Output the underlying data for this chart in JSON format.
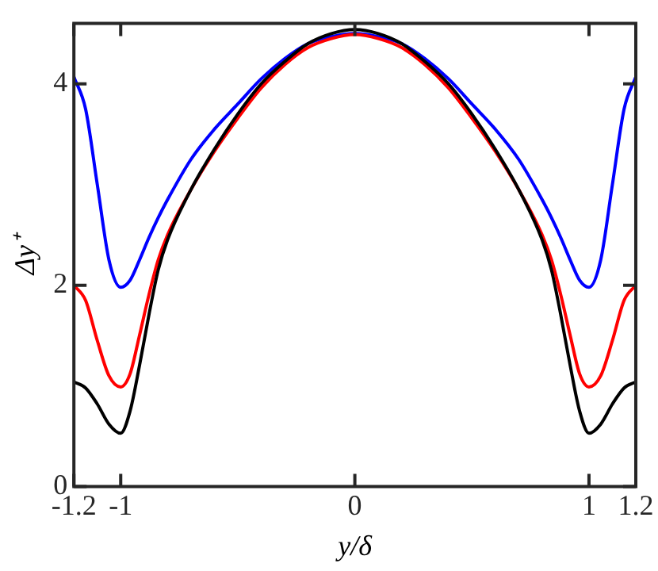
{
  "chart_data": {
    "type": "line",
    "xlabel": "y/δ",
    "ylabel": "Δy⁺",
    "xlim": [
      -1.2,
      1.2
    ],
    "ylim": [
      0,
      4.6
    ],
    "xticks": [
      -1.2,
      -1,
      0,
      1,
      1.2
    ],
    "yticks": [
      0,
      2,
      4
    ],
    "grid": false,
    "legend": false,
    "marker": "none",
    "line_style": "solid",
    "x": [
      -1.2,
      -1.15,
      -1.1,
      -1.05,
      -1,
      -0.96,
      -0.92,
      -0.88,
      -0.84,
      -0.8,
      -0.7,
      -0.6,
      -0.5,
      -0.4,
      -0.3,
      -0.2,
      -0.1,
      0,
      0.1,
      0.2,
      0.3,
      0.4,
      0.5,
      0.6,
      0.7,
      0.8,
      0.84,
      0.88,
      0.92,
      0.96,
      1,
      1.05,
      1.1,
      1.15,
      1.2
    ],
    "series": [
      {
        "color": "#000000",
        "values": [
          1.04,
          0.98,
          0.82,
          0.62,
          0.53,
          0.75,
          1.2,
          1.7,
          2.15,
          2.45,
          2.95,
          3.35,
          3.7,
          4.0,
          4.22,
          4.4,
          4.5,
          4.54,
          4.5,
          4.4,
          4.22,
          4.0,
          3.7,
          3.35,
          2.95,
          2.45,
          2.15,
          1.7,
          1.2,
          0.75,
          0.53,
          0.62,
          0.82,
          0.98,
          1.04
        ]
      },
      {
        "color": "#ff0000",
        "values": [
          2.0,
          1.85,
          1.45,
          1.1,
          0.99,
          1.12,
          1.5,
          1.9,
          2.25,
          2.5,
          2.95,
          3.33,
          3.66,
          3.96,
          4.19,
          4.36,
          4.45,
          4.49,
          4.45,
          4.36,
          4.19,
          3.96,
          3.66,
          3.33,
          2.95,
          2.5,
          2.25,
          1.9,
          1.5,
          1.12,
          0.99,
          1.1,
          1.45,
          1.85,
          2.0
        ]
      },
      {
        "color": "#0000ff",
        "values": [
          4.07,
          3.75,
          3.0,
          2.25,
          1.98,
          2.05,
          2.25,
          2.47,
          2.67,
          2.85,
          3.25,
          3.55,
          3.8,
          4.05,
          4.25,
          4.4,
          4.47,
          4.5,
          4.47,
          4.4,
          4.25,
          4.05,
          3.8,
          3.55,
          3.25,
          2.85,
          2.67,
          2.47,
          2.25,
          2.05,
          1.98,
          2.25,
          3.0,
          3.75,
          4.07
        ]
      }
    ]
  }
}
